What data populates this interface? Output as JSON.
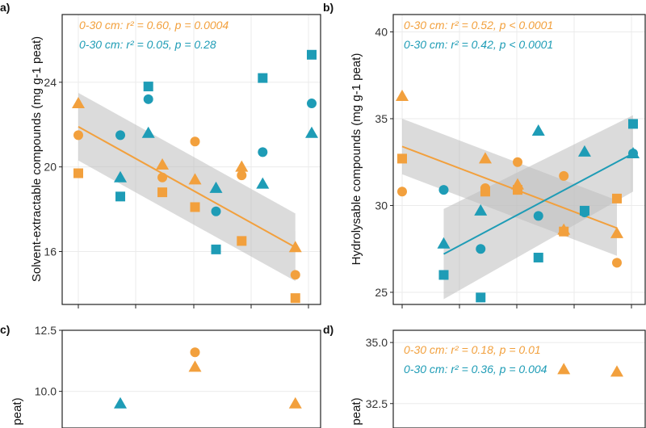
{
  "colors": {
    "orange": "#F2A03D",
    "teal": "#1E9CB6",
    "band": "#BDBDBD",
    "grid": "#EBEBEB"
  },
  "chart_data": [
    {
      "panel": "a)",
      "type": "scatter",
      "ylabel": "Solvent-extractable compounds (mg g-1 peat)",
      "ylim": [
        13.5,
        27.2
      ],
      "yticks": [
        "16",
        "20",
        "24"
      ],
      "ytick_values": [
        16,
        20,
        24
      ],
      "xlim": [
        0,
        1
      ],
      "annotations": [
        {
          "text": "0-30 cm: r² = 0.60, p = 0.0004",
          "color": "orange"
        },
        {
          "text": "0-30 cm: r² = 0.05, p = 0.28",
          "color": "teal"
        }
      ],
      "series": [
        {
          "color": "orange",
          "points": [
            {
              "shape": "triangle",
              "x": 0.0,
              "y": 23.0
            },
            {
              "shape": "circle",
              "x": 0.0,
              "y": 21.5
            },
            {
              "shape": "square",
              "x": 0.0,
              "y": 19.7
            },
            {
              "shape": "triangle",
              "x": 0.36,
              "y": 20.1
            },
            {
              "shape": "circle",
              "x": 0.36,
              "y": 19.5
            },
            {
              "shape": "square",
              "x": 0.36,
              "y": 18.8
            },
            {
              "shape": "circle",
              "x": 0.5,
              "y": 21.2
            },
            {
              "shape": "triangle",
              "x": 0.5,
              "y": 19.4
            },
            {
              "shape": "square",
              "x": 0.5,
              "y": 18.1
            },
            {
              "shape": "triangle",
              "x": 0.7,
              "y": 20.0
            },
            {
              "shape": "circle",
              "x": 0.7,
              "y": 19.6
            },
            {
              "shape": "square",
              "x": 0.7,
              "y": 16.5
            },
            {
              "shape": "triangle",
              "x": 0.93,
              "y": 16.2
            },
            {
              "shape": "circle",
              "x": 0.93,
              "y": 14.9
            },
            {
              "shape": "square",
              "x": 0.93,
              "y": 13.8
            }
          ]
        },
        {
          "color": "teal",
          "points": [
            {
              "shape": "circle",
              "x": 0.18,
              "y": 21.5
            },
            {
              "shape": "triangle",
              "x": 0.18,
              "y": 19.5
            },
            {
              "shape": "square",
              "x": 0.18,
              "y": 18.6
            },
            {
              "shape": "square",
              "x": 0.3,
              "y": 23.8
            },
            {
              "shape": "circle",
              "x": 0.3,
              "y": 23.2
            },
            {
              "shape": "triangle",
              "x": 0.3,
              "y": 21.6
            },
            {
              "shape": "triangle",
              "x": 0.59,
              "y": 19.0
            },
            {
              "shape": "circle",
              "x": 0.59,
              "y": 17.9
            },
            {
              "shape": "square",
              "x": 0.59,
              "y": 16.1
            },
            {
              "shape": "square",
              "x": 0.79,
              "y": 24.2
            },
            {
              "shape": "circle",
              "x": 0.79,
              "y": 20.7
            },
            {
              "shape": "triangle",
              "x": 0.79,
              "y": 19.2
            },
            {
              "shape": "square",
              "x": 1.0,
              "y": 25.3
            },
            {
              "shape": "circle",
              "x": 1.0,
              "y": 23.0
            },
            {
              "shape": "triangle",
              "x": 1.0,
              "y": 21.6
            }
          ]
        }
      ],
      "fits": [
        {
          "color": "orange",
          "x": [
            0.0,
            0.93
          ],
          "y": [
            21.9,
            16.2
          ],
          "band_upper": [
            23.5,
            17.8
          ],
          "band_lower": [
            20.3,
            14.6
          ]
        }
      ]
    },
    {
      "panel": "b)",
      "type": "scatter",
      "ylabel": "Hydrolysable compounds (mg g-1 peat)",
      "ylim": [
        24.3,
        41.0
      ],
      "yticks": [
        "25",
        "30",
        "35",
        "40"
      ],
      "ytick_values": [
        25,
        30,
        35,
        40
      ],
      "xlim": [
        0,
        1
      ],
      "annotations": [
        {
          "text": "0-30 cm: r² = 0.52, p < 0.0001",
          "color": "orange"
        },
        {
          "text": "0-30 cm: r² = 0.42, p < 0.0001",
          "color": "teal"
        }
      ],
      "series": [
        {
          "color": "orange",
          "points": [
            {
              "shape": "triangle",
              "x": 0.0,
              "y": 36.3
            },
            {
              "shape": "square",
              "x": 0.0,
              "y": 32.7
            },
            {
              "shape": "circle",
              "x": 0.0,
              "y": 30.8
            },
            {
              "shape": "triangle",
              "x": 0.36,
              "y": 32.7
            },
            {
              "shape": "circle",
              "x": 0.36,
              "y": 31.0
            },
            {
              "shape": "square",
              "x": 0.36,
              "y": 30.8
            },
            {
              "shape": "circle",
              "x": 0.5,
              "y": 32.5
            },
            {
              "shape": "triangle",
              "x": 0.5,
              "y": 31.2
            },
            {
              "shape": "square",
              "x": 0.5,
              "y": 30.9
            },
            {
              "shape": "circle",
              "x": 0.7,
              "y": 31.7
            },
            {
              "shape": "triangle",
              "x": 0.7,
              "y": 28.6
            },
            {
              "shape": "square",
              "x": 0.7,
              "y": 28.5
            },
            {
              "shape": "square",
              "x": 0.93,
              "y": 30.4
            },
            {
              "shape": "triangle",
              "x": 0.93,
              "y": 28.4
            },
            {
              "shape": "circle",
              "x": 0.93,
              "y": 26.7
            }
          ]
        },
        {
          "color": "teal",
          "points": [
            {
              "shape": "circle",
              "x": 0.18,
              "y": 30.9
            },
            {
              "shape": "triangle",
              "x": 0.18,
              "y": 27.8
            },
            {
              "shape": "square",
              "x": 0.18,
              "y": 26.0
            },
            {
              "shape": "triangle",
              "x": 0.34,
              "y": 29.7
            },
            {
              "shape": "circle",
              "x": 0.34,
              "y": 27.5
            },
            {
              "shape": "square",
              "x": 0.34,
              "y": 24.7
            },
            {
              "shape": "triangle",
              "x": 0.59,
              "y": 34.3
            },
            {
              "shape": "circle",
              "x": 0.59,
              "y": 29.4
            },
            {
              "shape": "square",
              "x": 0.59,
              "y": 27.0
            },
            {
              "shape": "triangle",
              "x": 0.79,
              "y": 33.1
            },
            {
              "shape": "square",
              "x": 0.79,
              "y": 29.7
            },
            {
              "shape": "circle",
              "x": 0.79,
              "y": 29.6
            },
            {
              "shape": "square",
              "x": 1.0,
              "y": 34.7
            },
            {
              "shape": "circle",
              "x": 1.0,
              "y": 33.0
            },
            {
              "shape": "triangle",
              "x": 1.0,
              "y": 33.0
            }
          ]
        }
      ],
      "fits": [
        {
          "color": "orange",
          "x": [
            0.0,
            0.93
          ],
          "y": [
            33.4,
            28.7
          ],
          "band_upper": [
            35.0,
            30.3
          ],
          "band_lower": [
            31.8,
            27.1
          ]
        },
        {
          "color": "teal",
          "x": [
            0.18,
            1.0
          ],
          "y": [
            27.2,
            33.0
          ],
          "band_upper": [
            29.8,
            35.2
          ],
          "band_lower": [
            24.6,
            30.8
          ]
        }
      ]
    },
    {
      "panel": "c)",
      "type": "scatter",
      "ylabel": "peat)",
      "ylim": [
        8.5,
        12.5
      ],
      "yticks": [
        "10.0",
        "12.5"
      ],
      "ytick_values": [
        10.0,
        12.5
      ],
      "xlim": [
        0,
        1
      ],
      "annotations": [],
      "series": [
        {
          "color": "orange",
          "points": [
            {
              "shape": "circle",
              "x": 0.5,
              "y": 11.6
            },
            {
              "shape": "triangle",
              "x": 0.5,
              "y": 11.0
            },
            {
              "shape": "triangle",
              "x": 0.93,
              "y": 9.5
            }
          ]
        },
        {
          "color": "teal",
          "points": [
            {
              "shape": "triangle",
              "x": 0.18,
              "y": 9.5
            }
          ]
        }
      ],
      "fits": []
    },
    {
      "panel": "d)",
      "type": "scatter",
      "ylabel": "peat)",
      "ylim": [
        31.5,
        35.5
      ],
      "yticks": [
        "32.5",
        "35.0"
      ],
      "ytick_values": [
        32.5,
        35.0
      ],
      "xlim": [
        0,
        1
      ],
      "annotations": [
        {
          "text": "0-30 cm: r² = 0.18, p = 0.01",
          "color": "orange"
        },
        {
          "text": "0-30 cm: r² = 0.36, p = 0.004",
          "color": "teal"
        }
      ],
      "series": [
        {
          "color": "orange",
          "points": [
            {
              "shape": "triangle",
              "x": 0.7,
              "y": 33.9
            },
            {
              "shape": "triangle",
              "x": 0.93,
              "y": 33.8
            }
          ]
        }
      ],
      "fits": []
    }
  ]
}
